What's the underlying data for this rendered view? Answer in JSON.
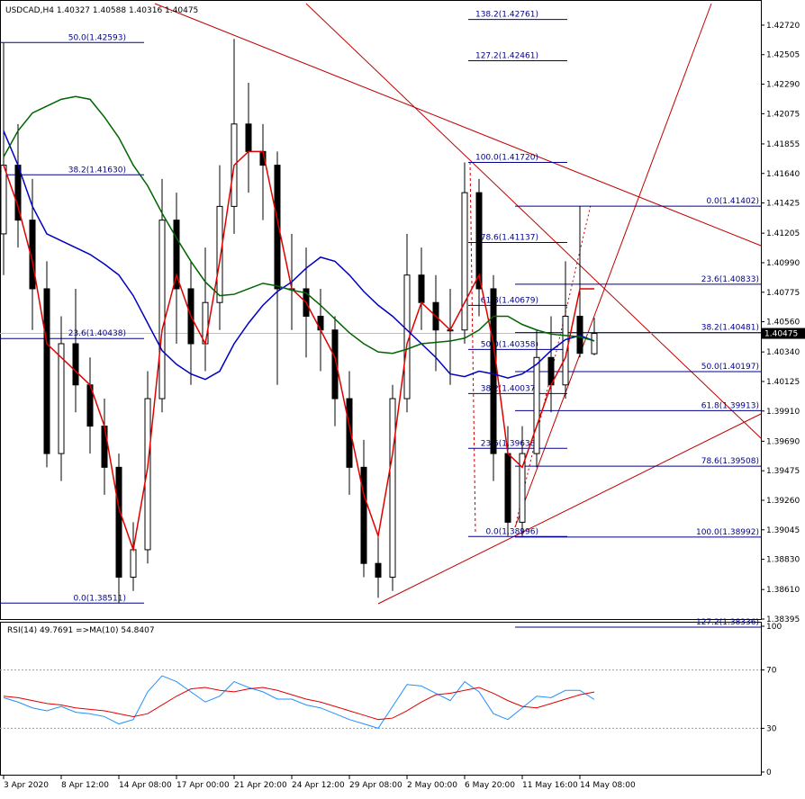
{
  "chart_data": {
    "type": "candlestick",
    "header": "USDCAD,H4  1.40327 1.40588 1.40316 1.40475",
    "categories": [
      "3 Apr 2020",
      null,
      null,
      null,
      "8 Apr 12:00",
      null,
      null,
      null,
      "14 Apr 08:00",
      null,
      null,
      null,
      "17 Apr 00:00",
      null,
      null,
      null,
      "21 Apr 20:00",
      null,
      null,
      null,
      "24 Apr 12:00",
      null,
      null,
      null,
      "29 Apr 08:00",
      null,
      null,
      null,
      "2 May 00:00",
      null,
      null,
      null,
      "6 May 20:00",
      null,
      null,
      null,
      "11 May 16:00",
      null,
      null,
      null,
      "14 May 08:00",
      null
    ],
    "ohlc": [
      [
        1.412,
        1.4259,
        1.409,
        1.417
      ],
      [
        1.417,
        1.42,
        1.411,
        1.413
      ],
      [
        1.413,
        1.416,
        1.405,
        1.408
      ],
      [
        1.408,
        1.41,
        1.395,
        1.396
      ],
      [
        1.396,
        1.406,
        1.394,
        1.404
      ],
      [
        1.404,
        1.408,
        1.399,
        1.401
      ],
      [
        1.401,
        1.403,
        1.396,
        1.398
      ],
      [
        1.398,
        1.4,
        1.393,
        1.395
      ],
      [
        1.395,
        1.396,
        1.3851,
        1.387
      ],
      [
        1.387,
        1.391,
        1.386,
        1.389
      ],
      [
        1.389,
        1.402,
        1.388,
        1.4
      ],
      [
        1.4,
        1.416,
        1.399,
        1.413
      ],
      [
        1.413,
        1.415,
        1.404,
        1.408
      ],
      [
        1.408,
        1.41,
        1.401,
        1.404
      ],
      [
        1.404,
        1.411,
        1.402,
        1.407
      ],
      [
        1.407,
        1.417,
        1.405,
        1.414
      ],
      [
        1.414,
        1.4262,
        1.412,
        1.42
      ],
      [
        1.42,
        1.423,
        1.415,
        1.418
      ],
      [
        1.418,
        1.42,
        1.413,
        1.417
      ],
      [
        1.417,
        1.418,
        1.401,
        1.408
      ],
      [
        1.408,
        1.412,
        1.405,
        1.408
      ],
      [
        1.408,
        1.411,
        1.403,
        1.406
      ],
      [
        1.406,
        1.408,
        1.402,
        1.405
      ],
      [
        1.405,
        1.406,
        1.398,
        1.4
      ],
      [
        1.4,
        1.402,
        1.393,
        1.395
      ],
      [
        1.395,
        1.397,
        1.387,
        1.388
      ],
      [
        1.388,
        1.39,
        1.3855,
        1.387
      ],
      [
        1.387,
        1.401,
        1.386,
        1.4
      ],
      [
        1.4,
        1.412,
        1.399,
        1.409
      ],
      [
        1.409,
        1.411,
        1.405,
        1.407
      ],
      [
        1.407,
        1.409,
        1.402,
        1.405
      ],
      [
        1.405,
        1.408,
        1.401,
        1.405
      ],
      [
        1.405,
        1.4172,
        1.404,
        1.415
      ],
      [
        1.415,
        1.416,
        1.406,
        1.408
      ],
      [
        1.408,
        1.409,
        1.394,
        1.396
      ],
      [
        1.396,
        1.398,
        1.39,
        1.391
      ],
      [
        1.391,
        1.398,
        1.39,
        1.396
      ],
      [
        1.396,
        1.405,
        1.395,
        1.403
      ],
      [
        1.403,
        1.406,
        1.399,
        1.401
      ],
      [
        1.401,
        1.41,
        1.4,
        1.406
      ],
      [
        1.406,
        1.414,
        1.403,
        1.4033
      ],
      [
        1.40327,
        1.40588,
        1.40316,
        1.40475
      ]
    ],
    "up_color": "#ffffff",
    "down_color": "#000000",
    "series": [
      {
        "color": "#e00000",
        "values": [
          1.417,
          1.414,
          1.41,
          1.404,
          1.403,
          1.402,
          1.401,
          1.398,
          1.392,
          1.389,
          1.395,
          1.405,
          1.409,
          1.406,
          1.404,
          1.41,
          1.417,
          1.418,
          1.418,
          1.413,
          1.408,
          1.407,
          1.405,
          1.403,
          1.398,
          1.393,
          1.39,
          1.396,
          1.404,
          1.407,
          1.406,
          1.405,
          1.407,
          1.409,
          1.404,
          1.396,
          1.395,
          1.398,
          1.401,
          1.403,
          1.408,
          1.408
        ]
      },
      {
        "color": "#0000c0",
        "values": [
          1.4195,
          1.417,
          1.414,
          1.412,
          1.4115,
          1.411,
          1.4105,
          1.4098,
          1.409,
          1.4075,
          1.4055,
          1.4035,
          1.4025,
          1.4018,
          1.4014,
          1.402,
          1.404,
          1.4055,
          1.4068,
          1.4078,
          1.4085,
          1.4095,
          1.4103,
          1.41,
          1.409,
          1.4078,
          1.4068,
          1.406,
          1.405,
          1.404,
          1.403,
          1.4018,
          1.4016,
          1.402,
          1.4018,
          1.4015,
          1.4018,
          1.4025,
          1.4035,
          1.4043,
          1.4046,
          1.4042
        ]
      },
      {
        "color": "#006400",
        "values": [
          1.4176,
          1.4195,
          1.4208,
          1.4213,
          1.4218,
          1.422,
          1.4218,
          1.4205,
          1.419,
          1.417,
          1.4155,
          1.4135,
          1.4117,
          1.41,
          1.4085,
          1.4075,
          1.4076,
          1.408,
          1.4084,
          1.4082,
          1.4079,
          1.4077,
          1.4068,
          1.4058,
          1.4048,
          1.404,
          1.4034,
          1.4033,
          1.4036,
          1.404,
          1.4041,
          1.4042,
          1.4044,
          1.405,
          1.406,
          1.406,
          1.4054,
          1.405,
          1.4047,
          1.4046,
          1.4045,
          1.4042
        ]
      }
    ],
    "ylim": [
      1.38395,
      1.42903
    ],
    "yticks": [
      {
        "value": 1.4272,
        "label": "1.42720"
      },
      {
        "value": 1.42505,
        "label": "1.42505"
      },
      {
        "value": 1.4229,
        "label": "1.42290"
      },
      {
        "value": 1.42075,
        "label": "1.42075"
      },
      {
        "value": 1.41855,
        "label": "1.41855"
      },
      {
        "value": 1.4164,
        "label": "1.41640"
      },
      {
        "value": 1.41425,
        "label": "1.41425"
      },
      {
        "value": 1.41205,
        "label": "1.41205"
      },
      {
        "value": 1.4099,
        "label": "1.40990"
      },
      {
        "value": 1.40775,
        "label": "1.40775"
      },
      {
        "value": 1.4056,
        "label": "1.40560"
      },
      {
        "value": 1.4034,
        "label": "1.40340"
      },
      {
        "value": 1.40125,
        "label": "1.40125"
      },
      {
        "value": 1.3991,
        "label": "1.39910"
      },
      {
        "value": 1.3969,
        "label": "1.39690"
      },
      {
        "value": 1.39475,
        "label": "1.39475"
      },
      {
        "value": 1.3926,
        "label": "1.39260"
      },
      {
        "value": 1.39045,
        "label": "1.39045"
      },
      {
        "value": 1.3883,
        "label": "1.38830"
      },
      {
        "value": 1.3861,
        "label": "1.38610"
      },
      {
        "value": 1.38395,
        "label": "1.38395"
      }
    ],
    "current_price": {
      "value": 1.40475,
      "label": "1.40475"
    },
    "fib_levels": [
      [
        {
          "label": "50.0(1.42593)",
          "value": 1.42593
        },
        {
          "label": "38.2(1.41630)",
          "value": 1.4163
        },
        {
          "label": "23.6(1.40438)",
          "value": 1.40438
        },
        {
          "label": "0.0(1.38511)",
          "value": 1.38511
        }
      ],
      [
        {
          "label": "138.2(1.42761)",
          "value": 1.42761
        },
        {
          "label": "127.2(1.42461)",
          "value": 1.42461
        },
        {
          "label": "100.0(1.41720)",
          "value": 1.4172
        },
        {
          "label": "78.6(1.41137)",
          "value": 1.41137
        },
        {
          "label": "61.8(1.40679)",
          "value": 1.40679
        },
        {
          "label": "50.0(1.40358)",
          "value": 1.40358
        },
        {
          "label": "38.2(1.40037)",
          "value": 1.40037
        },
        {
          "label": "23.6(1.39638)",
          "value": 1.39638
        },
        {
          "label": "0.0(1.38996)",
          "value": 1.38996
        }
      ],
      [
        {
          "label": "0.0(1.41402)",
          "value": 1.41402
        },
        {
          "label": "23.6(1.40833)",
          "value": 1.40833
        },
        {
          "label": "38.2(1.40481)",
          "value": 1.40481
        },
        {
          "label": "50.0(1.40197)",
          "value": 1.40197
        },
        {
          "label": "61.8(1.39913)",
          "value": 1.39913
        },
        {
          "label": "78.6(1.39508)",
          "value": 1.39508
        },
        {
          "label": "100.0(1.38992)",
          "value": 1.38992
        },
        {
          "label": "127.2(1.38336)",
          "value": 1.38336
        }
      ]
    ],
    "rsi": {
      "header": "RSI(14) 49.7691  =>MA(10) 54.8407",
      "ylim": [
        0,
        100
      ],
      "yticks": [
        0,
        30,
        70,
        100
      ],
      "levels": [
        30,
        70
      ],
      "series": [
        {
          "color": "#1e90ff",
          "values": [
            51,
            48,
            44,
            42,
            45,
            41,
            40,
            38,
            33,
            36,
            55,
            66,
            62,
            55,
            48,
            52,
            62,
            58,
            55,
            50,
            50,
            46,
            44,
            40,
            36,
            33,
            30,
            45,
            60,
            59,
            54,
            49,
            62,
            55,
            40,
            36,
            44,
            52,
            51,
            56,
            56,
            49.7691
          ]
        },
        {
          "color": "#e00000",
          "values": [
            52,
            51,
            49,
            47,
            46,
            44,
            43,
            42,
            40,
            38,
            40,
            46,
            52,
            57,
            58,
            56,
            55,
            57,
            58,
            56,
            53,
            50,
            48,
            45,
            42,
            39,
            36,
            37,
            42,
            48,
            53,
            54,
            56,
            58,
            54,
            49,
            45,
            44,
            47,
            50,
            53,
            54.8407
          ]
        }
      ]
    }
  }
}
